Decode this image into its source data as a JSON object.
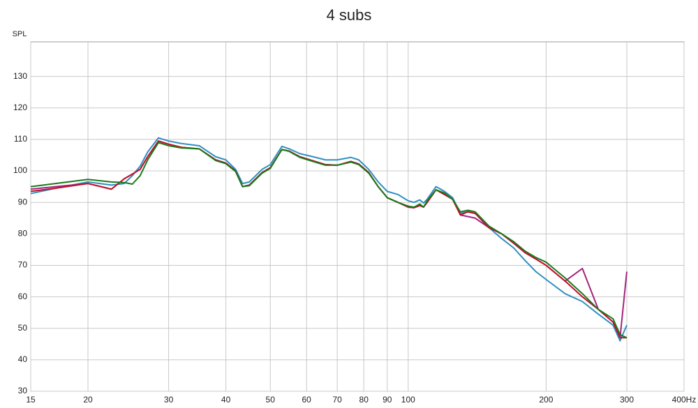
{
  "chart_data": {
    "type": "line",
    "title": "4 subs",
    "y_label": "SPL",
    "log_x": true,
    "grid": true,
    "x": [
      15,
      17,
      20,
      22.5,
      24,
      25,
      26,
      27,
      28.5,
      30,
      32,
      35,
      38,
      40,
      42,
      43.5,
      45,
      48,
      50,
      53,
      55,
      58,
      62,
      66,
      70,
      75,
      78,
      82,
      86,
      90,
      95,
      100,
      103,
      106,
      108,
      110,
      115,
      120,
      125,
      130,
      135,
      140,
      150,
      160,
      170,
      180,
      190,
      200,
      220,
      240,
      260,
      280,
      290,
      300
    ],
    "series": [
      {
        "color": "#2f8fc0",
        "values": [
          92.8,
          94.5,
          96.5,
          95.5,
          96,
          98.5,
          101.5,
          106,
          110.5,
          109.5,
          108.7,
          108,
          104.5,
          103.5,
          100.5,
          96,
          96.5,
          100.5,
          102,
          107.8,
          107,
          105.5,
          104.5,
          103.5,
          103.5,
          104.3,
          103.5,
          100.5,
          96.5,
          93.5,
          92.5,
          90.5,
          90,
          90.8,
          89.8,
          91,
          95,
          93.5,
          91.5,
          86.5,
          87,
          86.5,
          82,
          78.5,
          75.5,
          71.5,
          68,
          65.5,
          61,
          58.5,
          54.5,
          51,
          46,
          51
        ]
      },
      {
        "color": "#a3237f",
        "values": [
          94.2,
          95,
          96,
          94.2,
          97.5,
          99,
          100.5,
          104.5,
          109.5,
          108.5,
          107.5,
          107,
          103.5,
          102.5,
          100,
          95,
          95.5,
          99.5,
          101,
          106.8,
          106.3,
          104.5,
          103.2,
          102,
          101.8,
          103,
          102.2,
          99.5,
          95,
          91.5,
          90,
          88.5,
          88.3,
          89,
          88.5,
          90,
          94,
          92.5,
          91,
          86,
          85.5,
          85,
          82,
          80,
          77,
          74,
          72,
          70,
          65,
          69,
          56,
          52,
          47,
          68
        ]
      },
      {
        "color": "#c0102a",
        "values": [
          93.5,
          94.5,
          96,
          94.2,
          97.5,
          99,
          100.5,
          104.5,
          109.5,
          108.5,
          107.5,
          107,
          103.5,
          102.5,
          100,
          95,
          95.5,
          99.5,
          101,
          106.8,
          106.3,
          104.5,
          103.2,
          102,
          101.8,
          103,
          102.2,
          99.5,
          95,
          91.5,
          90,
          88.5,
          88.3,
          89,
          88.5,
          90,
          94,
          92.5,
          91,
          86,
          87,
          86.5,
          82,
          80,
          77,
          74,
          72,
          70,
          65,
          60,
          56,
          52,
          47,
          47
        ]
      },
      {
        "color": "#1a7a1a",
        "values": [
          95,
          96,
          97.3,
          96.5,
          96.3,
          95.8,
          98.5,
          103.5,
          109,
          108,
          107.3,
          107,
          103.3,
          102.3,
          99.8,
          95,
          95.3,
          99.3,
          100.8,
          106.8,
          106.2,
          104.3,
          103,
          101.8,
          101.8,
          102.8,
          102,
          99.3,
          95,
          91.5,
          90,
          88.8,
          88.5,
          89.5,
          88.5,
          90.5,
          94,
          93,
          91,
          87,
          87.5,
          87,
          82.5,
          80,
          77.5,
          74.5,
          72.5,
          71,
          66,
          61,
          56,
          53,
          48,
          47
        ]
      }
    ],
    "xlim": [
      15,
      400
    ],
    "ylim": [
      30,
      141
    ],
    "xticks": [
      15,
      20,
      30,
      40,
      50,
      60,
      70,
      80,
      90,
      100,
      200,
      300,
      {
        "value": 400,
        "label": "400Hz"
      }
    ],
    "yticks": [
      30,
      40,
      50,
      60,
      70,
      80,
      90,
      100,
      110,
      120,
      130
    ]
  }
}
